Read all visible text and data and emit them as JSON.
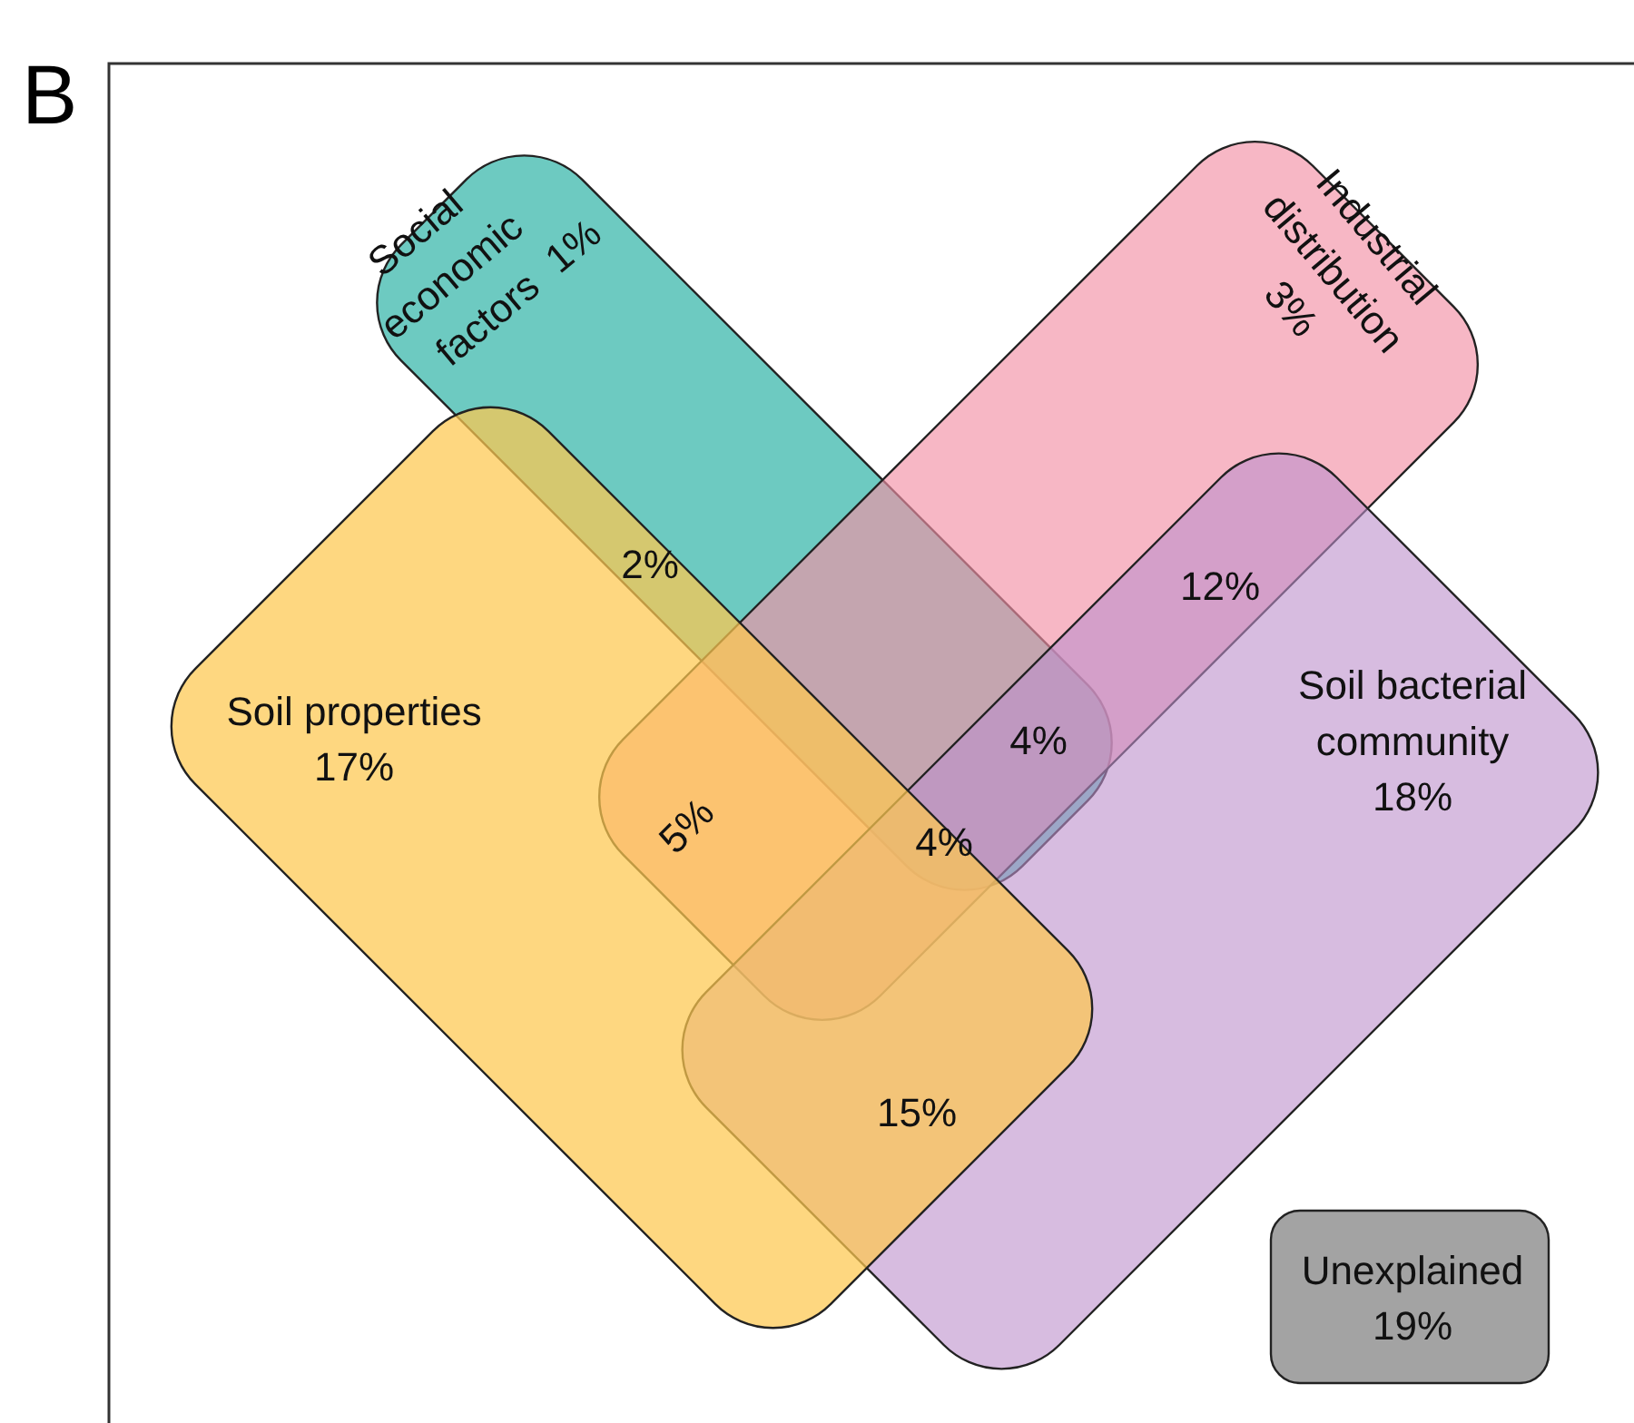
{
  "chart_data": {
    "type": "other",
    "title": "B",
    "categories": [
      "Soil properties",
      "Soil bacterial community",
      "Industrial distribution",
      "Social economic factors",
      "Unexplained"
    ],
    "values": [
      17,
      18,
      3,
      1,
      19
    ],
    "value_labels": [
      "17%",
      "18%",
      "3%",
      "1%",
      "19%"
    ],
    "colors": [
      "#fec84f",
      "#bd8fcc",
      "#f391a6",
      "#2fb3a6",
      "#8c8c8c"
    ],
    "annotations": [
      "2%",
      "12%",
      "4%",
      "5%",
      "4%",
      "15%"
    ]
  }
}
